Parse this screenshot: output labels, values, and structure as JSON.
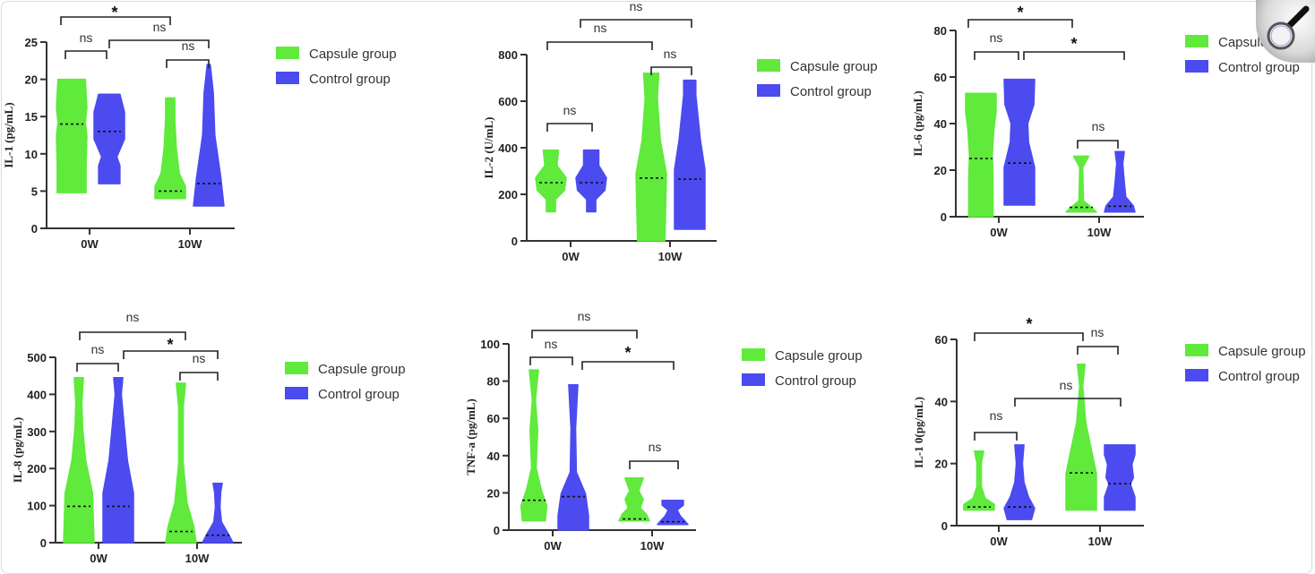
{
  "colors": {
    "capsule": "#5fea3c",
    "control": "#4b4bf0",
    "axis": "#333333"
  },
  "legend": {
    "capsule_label": "Capsule group",
    "control_label": "Control group"
  },
  "toolbar": {
    "zoom_icon": "magnifier-icon"
  },
  "chart_data": [
    {
      "type": "violin",
      "ylabel": "IL-1 (pg/mL)",
      "categories": [
        "0W",
        "10W"
      ],
      "ylim": [
        0,
        25
      ],
      "yticks": [
        "0",
        "5",
        "10",
        "15",
        "20",
        "25"
      ],
      "series": [
        {
          "name": "Capsule group",
          "min": [
            4.8,
            4.0
          ],
          "max": [
            20,
            17.5
          ],
          "median": [
            14,
            5
          ]
        },
        {
          "name": "Control group",
          "min": [
            6,
            3
          ],
          "max": [
            18,
            22
          ],
          "median": [
            13,
            6
          ]
        }
      ],
      "comparisons": [
        {
          "label": "*",
          "from": "0W Capsule",
          "to": "10W Capsule"
        },
        {
          "label": "ns",
          "from": "0W Control",
          "to": "10W Control"
        },
        {
          "label": "ns",
          "from": "0W Capsule",
          "to": "0W Control"
        },
        {
          "label": "ns",
          "from": "10W Capsule",
          "to": "10W Control"
        }
      ]
    },
    {
      "type": "violin",
      "ylabel": "IL-2 (U/mL)",
      "categories": [
        "0W",
        "10W"
      ],
      "ylim": [
        0,
        800
      ],
      "yticks": [
        "0",
        "200",
        "400",
        "600",
        "800"
      ],
      "series": [
        {
          "name": "Capsule group",
          "min": [
            125,
            0
          ],
          "max": [
            390,
            720
          ],
          "median": [
            250,
            270
          ]
        },
        {
          "name": "Control group",
          "min": [
            125,
            50
          ],
          "max": [
            390,
            690
          ],
          "median": [
            250,
            265
          ]
        }
      ],
      "comparisons": [
        {
          "label": "ns",
          "from": "0W Control",
          "to": "10W Control"
        },
        {
          "label": "ns",
          "from": "0W Capsule",
          "to": "10W Capsule"
        },
        {
          "label": "ns",
          "from": "10W Capsule",
          "to": "10W Control"
        },
        {
          "label": "ns",
          "from": "0W Capsule",
          "to": "0W Control"
        }
      ]
    },
    {
      "type": "violin",
      "ylabel": "IL-6 (pg/mL)",
      "categories": [
        "0W",
        "10W"
      ],
      "ylim": [
        0,
        80
      ],
      "yticks": [
        "0",
        "20",
        "40",
        "60",
        "80"
      ],
      "series": [
        {
          "name": "Capsule group",
          "min": [
            0,
            2
          ],
          "max": [
            53,
            26
          ],
          "median": [
            25,
            4
          ]
        },
        {
          "name": "Control group",
          "min": [
            5,
            2
          ],
          "max": [
            59,
            28
          ],
          "median": [
            23,
            4.5
          ]
        }
      ],
      "comparisons": [
        {
          "label": "*",
          "from": "0W Capsule",
          "to": "10W Capsule"
        },
        {
          "label": "ns",
          "from": "0W Capsule",
          "to": "0W Control"
        },
        {
          "label": "*",
          "from": "0W Control",
          "to": "10W Control"
        },
        {
          "label": "ns",
          "from": "10W Capsule",
          "to": "10W Control"
        }
      ]
    },
    {
      "type": "violin",
      "ylabel": "IL-8 (pg/mL)",
      "categories": [
        "0W",
        "10W"
      ],
      "ylim": [
        0,
        500
      ],
      "yticks": [
        "0",
        "100",
        "200",
        "300",
        "400",
        "500"
      ],
      "series": [
        {
          "name": "Capsule group",
          "min": [
            0,
            0
          ],
          "max": [
            445,
            430
          ],
          "median": [
            98,
            30
          ]
        },
        {
          "name": "Control group",
          "min": [
            0,
            0
          ],
          "max": [
            445,
            160
          ],
          "median": [
            98,
            20
          ]
        }
      ],
      "comparisons": [
        {
          "label": "ns",
          "from": "0W Capsule",
          "to": "10W Capsule"
        },
        {
          "label": "ns",
          "from": "0W Capsule",
          "to": "0W Control"
        },
        {
          "label": "*",
          "from": "0W Control",
          "to": "10W Control"
        },
        {
          "label": "ns",
          "from": "10W Capsule",
          "to": "10W Control"
        }
      ]
    },
    {
      "type": "violin",
      "ylabel": "TNF-a (pg/mL)",
      "categories": [
        "0W",
        "10W"
      ],
      "ylim": [
        0,
        100
      ],
      "yticks": [
        "0",
        "20",
        "40",
        "60",
        "80",
        "100"
      ],
      "series": [
        {
          "name": "Capsule group",
          "min": [
            5,
            5
          ],
          "max": [
            86,
            28
          ],
          "median": [
            16,
            6
          ]
        },
        {
          "name": "Control group",
          "min": [
            0,
            3
          ],
          "max": [
            78,
            16
          ],
          "median": [
            18,
            4.5
          ]
        }
      ],
      "comparisons": [
        {
          "label": "ns",
          "from": "0W Capsule",
          "to": "10W Capsule"
        },
        {
          "label": "ns",
          "from": "0W Capsule",
          "to": "0W Control"
        },
        {
          "label": "*",
          "from": "0W Control",
          "to": "10W Control"
        },
        {
          "label": "ns",
          "from": "10W Capsule",
          "to": "10W Control"
        }
      ]
    },
    {
      "type": "violin",
      "ylabel": "IL-1 0(pg/mL)",
      "categories": [
        "0W",
        "10W"
      ],
      "ylim": [
        0,
        60
      ],
      "yticks": [
        "0",
        "20",
        "40",
        "60"
      ],
      "series": [
        {
          "name": "Capsule group",
          "min": [
            5,
            5
          ],
          "max": [
            24,
            52
          ],
          "median": [
            6,
            17
          ]
        },
        {
          "name": "Control group",
          "min": [
            2,
            5
          ],
          "max": [
            26,
            26
          ],
          "median": [
            6,
            13.5
          ]
        }
      ],
      "comparisons": [
        {
          "label": "*",
          "from": "0W Capsule",
          "to": "10W Capsule"
        },
        {
          "label": "ns",
          "from": "10W Capsule",
          "to": "10W Control"
        },
        {
          "label": "ns",
          "from": "0W Control",
          "to": "10W Control"
        },
        {
          "label": "ns",
          "from": "0W Capsule",
          "to": "0W Control"
        }
      ]
    }
  ]
}
